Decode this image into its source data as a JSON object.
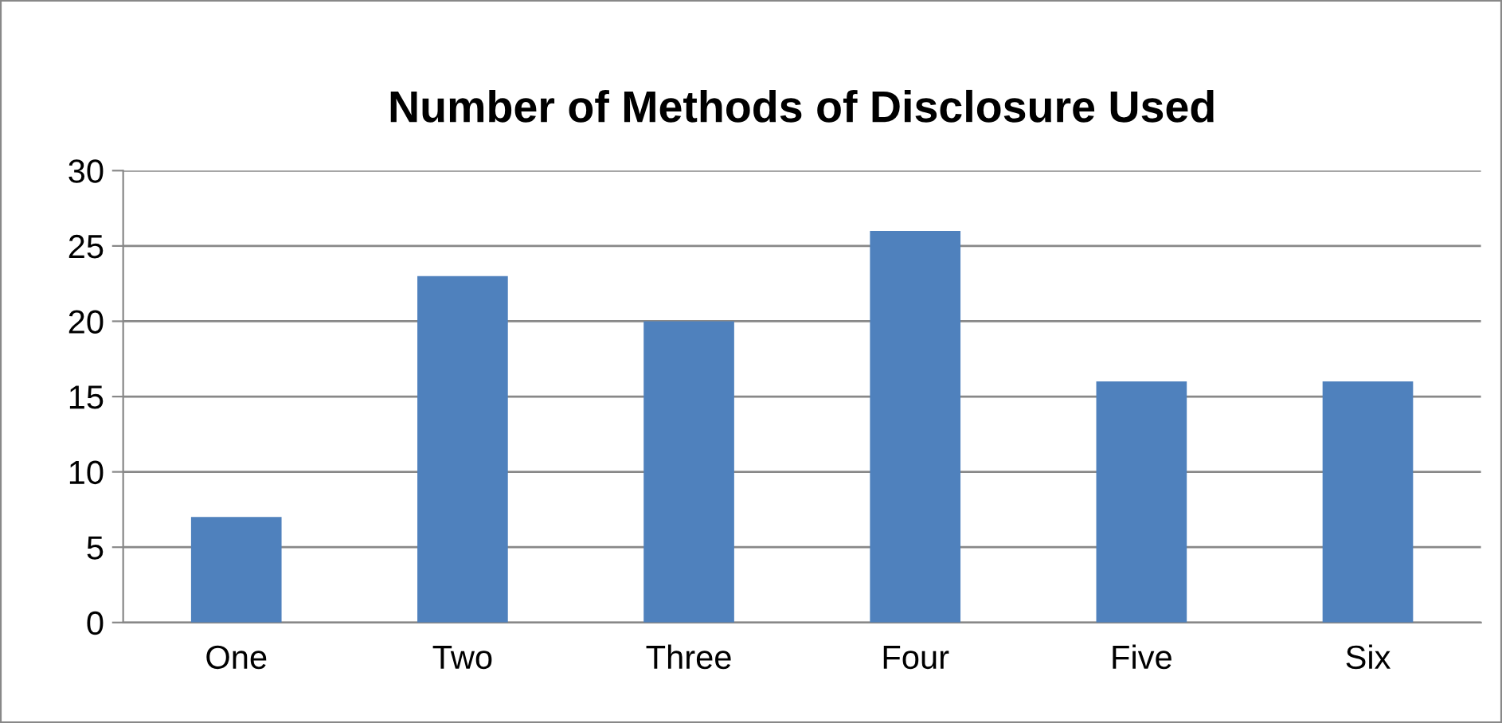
{
  "chart_data": {
    "type": "bar",
    "title": "Number of Methods of Disclosure Used",
    "categories": [
      "One",
      "Two",
      "Three",
      "Four",
      "Five",
      "Six"
    ],
    "values": [
      7,
      23,
      20,
      26,
      16,
      16
    ],
    "color": "#4f81bd",
    "ylim": [
      0,
      30
    ],
    "yticks": [
      0,
      5,
      10,
      15,
      20,
      25,
      30
    ],
    "grid": "y",
    "legend": false
  }
}
